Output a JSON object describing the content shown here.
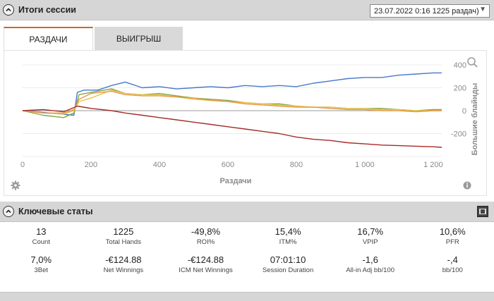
{
  "session_panel": {
    "title": "Итоги сессии",
    "session_select": "23.07.2022 0:16 1225 раздач)"
  },
  "tabs": [
    {
      "label": "РАЗДАЧИ",
      "active": true
    },
    {
      "label": "ВЫИГРЫШ",
      "active": false
    }
  ],
  "chart_data": {
    "type": "line",
    "xlabel": "Раздачи",
    "ylabel": "Большие блайнды",
    "xlim": [
      0,
      1225
    ],
    "ylim": [
      -400,
      400
    ],
    "x_ticks": [
      "0",
      "200",
      "400",
      "600",
      "800",
      "1 000",
      "1 200"
    ],
    "y_ticks": [
      "400",
      "200",
      "0",
      "-200"
    ],
    "series": [
      {
        "color": "#4a78c8",
        "x": [
          0,
          80,
          150,
          160,
          180,
          220,
          260,
          300,
          350,
          400,
          450,
          500,
          550,
          600,
          650,
          700,
          750,
          800,
          850,
          900,
          950,
          1000,
          1050,
          1100,
          1150,
          1200,
          1225
        ],
        "y": [
          0,
          -20,
          -40,
          160,
          180,
          180,
          220,
          250,
          200,
          210,
          190,
          200,
          210,
          200,
          220,
          210,
          220,
          210,
          240,
          260,
          280,
          290,
          290,
          310,
          320,
          330,
          330
        ]
      },
      {
        "color": "#7ea845",
        "x": [
          0,
          60,
          120,
          150,
          165,
          200,
          260,
          300,
          350,
          400,
          450,
          500,
          550,
          600,
          650,
          700,
          750,
          800,
          850,
          900,
          950,
          1000,
          1050,
          1100,
          1150,
          1200,
          1225
        ],
        "y": [
          0,
          -40,
          -60,
          -20,
          140,
          160,
          190,
          150,
          140,
          150,
          130,
          110,
          100,
          90,
          70,
          60,
          60,
          40,
          30,
          30,
          20,
          20,
          20,
          10,
          0,
          10,
          10
        ]
      },
      {
        "color": "#e8c24a",
        "x": [
          0,
          60,
          120,
          150,
          165,
          200,
          260,
          300,
          350,
          400,
          450,
          500,
          550,
          600,
          650,
          700,
          750,
          800,
          850,
          900,
          950,
          1000,
          1050,
          1100,
          1150,
          1200,
          1225
        ],
        "y": [
          0,
          -20,
          -30,
          0,
          80,
          110,
          180,
          150,
          140,
          140,
          120,
          100,
          90,
          80,
          70,
          60,
          50,
          40,
          30,
          30,
          20,
          20,
          10,
          10,
          0,
          0,
          0
        ]
      },
      {
        "color": "#e8974a",
        "x": [
          0,
          60,
          120,
          150,
          165,
          200,
          260,
          300,
          350,
          400,
          450,
          500,
          550,
          600,
          650,
          700,
          750,
          800,
          850,
          900,
          950,
          1000,
          1050,
          1100,
          1150,
          1200,
          1225
        ],
        "y": [
          0,
          -20,
          -20,
          10,
          100,
          150,
          170,
          140,
          130,
          130,
          120,
          110,
          90,
          80,
          60,
          50,
          40,
          30,
          30,
          20,
          10,
          10,
          0,
          0,
          -10,
          0,
          0
        ]
      },
      {
        "color": "#a52a2a",
        "x": [
          0,
          60,
          120,
          160,
          200,
          260,
          300,
          350,
          400,
          450,
          500,
          550,
          600,
          650,
          700,
          750,
          800,
          850,
          900,
          950,
          1000,
          1050,
          1100,
          1150,
          1200,
          1225
        ],
        "y": [
          0,
          10,
          -10,
          40,
          20,
          0,
          -20,
          -40,
          -60,
          -80,
          -100,
          -120,
          -140,
          -160,
          -180,
          -200,
          -230,
          -250,
          -260,
          -280,
          -290,
          -300,
          -305,
          -310,
          -315,
          -320
        ]
      }
    ],
    "zero_line": true
  },
  "key_stats": {
    "title": "Ключевые статы",
    "rows": [
      [
        {
          "value": "13",
          "label": "Count"
        },
        {
          "value": "1225",
          "label": "Total Hands"
        },
        {
          "value": "-49,8%",
          "label": "ROI%"
        },
        {
          "value": "15,4%",
          "label": "ITM%"
        },
        {
          "value": "16,7%",
          "label": "VPIP"
        },
        {
          "value": "10,6%",
          "label": "PFR"
        }
      ],
      [
        {
          "value": "7,0%",
          "label": "3Bet"
        },
        {
          "value": "-€124.88",
          "label": "Net Winnings"
        },
        {
          "value": "-€124.88",
          "label": "ICM Net Winnings"
        },
        {
          "value": "07:01:10",
          "label": "Session Duration"
        },
        {
          "value": "-1,6",
          "label": "All-in Adj bb/100"
        },
        {
          "value": "-,4",
          "label": "bb/100"
        }
      ]
    ]
  },
  "colors": {
    "accent_tab": "#c66a2a",
    "header_bg": "#d6d6d6"
  },
  "icons": [
    "chevron-up-icon",
    "zoom-icon",
    "gear-icon",
    "info-icon",
    "grid-toggle-icon"
  ]
}
